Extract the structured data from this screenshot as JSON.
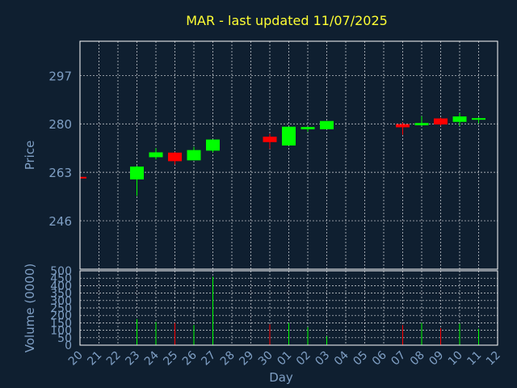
{
  "title": "MAR - last updated 11/07/2025",
  "ylabel_price": "Price",
  "ylabel_volume": "Volume (0000)",
  "xlabel": "Day",
  "colors": {
    "background": "#0f1f30",
    "up": "#00ff00",
    "down": "#ff0000",
    "title": "#ffff33",
    "axis_text": "#7f9fc4",
    "grid": "#ffffff"
  },
  "chart_data": [
    {
      "type": "candlestick",
      "ylim": [
        229,
        309
      ],
      "yticks": [
        246,
        263,
        280,
        297
      ],
      "grid": true,
      "x_ticks": [
        "20",
        "21",
        "22",
        "23",
        "24",
        "25",
        "26",
        "27",
        "28",
        "29",
        "30",
        "01",
        "02",
        "03",
        "04",
        "05",
        "06",
        "07",
        "08",
        "09",
        "10",
        "11",
        "12"
      ],
      "candles": [
        {
          "day": "20",
          "open": 261.4,
          "close": 260.9,
          "high": 261.4,
          "low": 260.9
        },
        {
          "day": "23",
          "open": 260.5,
          "close": 265.0,
          "high": 265.3,
          "low": 254.7
        },
        {
          "day": "24",
          "open": 268.3,
          "close": 270.0,
          "high": 271.5,
          "low": 267.5
        },
        {
          "day": "25",
          "open": 269.9,
          "close": 266.9,
          "high": 270.1,
          "low": 265.7
        },
        {
          "day": "26",
          "open": 267.2,
          "close": 270.8,
          "high": 271.9,
          "low": 267.2
        },
        {
          "day": "27",
          "open": 270.6,
          "close": 274.5,
          "high": 274.5,
          "low": 270.0
        },
        {
          "day": "30",
          "open": 275.5,
          "close": 273.6,
          "high": 276.5,
          "low": 271.2
        },
        {
          "day": "01",
          "open": 272.4,
          "close": 279.0,
          "high": 279.0,
          "low": 272.4
        },
        {
          "day": "02",
          "open": 278.1,
          "close": 278.9,
          "high": 279.0,
          "low": 277.3
        },
        {
          "day": "03",
          "open": 278.1,
          "close": 281.0,
          "high": 281.0,
          "low": 278.1
        },
        {
          "day": "07",
          "open": 279.9,
          "close": 278.8,
          "high": 280.5,
          "low": 276.2
        },
        {
          "day": "08",
          "open": 279.5,
          "close": 280.3,
          "high": 282.7,
          "low": 279.3
        },
        {
          "day": "09",
          "open": 281.9,
          "close": 279.8,
          "high": 282.2,
          "low": 279.4
        },
        {
          "day": "10",
          "open": 280.7,
          "close": 282.6,
          "high": 283.8,
          "low": 279.3
        },
        {
          "day": "11",
          "open": 281.7,
          "close": 282.0,
          "high": 282.3,
          "low": 280.2
        }
      ]
    },
    {
      "type": "bar",
      "ylim": [
        0,
        500
      ],
      "yticks": [
        0,
        50,
        100,
        150,
        200,
        250,
        300,
        350,
        400,
        450,
        500
      ],
      "ylabel": "Volume (0000)",
      "grid": true,
      "volumes": [
        {
          "day": "23",
          "value": 175,
          "dir": "up"
        },
        {
          "day": "24",
          "value": 155,
          "dir": "up"
        },
        {
          "day": "25",
          "value": 150,
          "dir": "down"
        },
        {
          "day": "26",
          "value": 135,
          "dir": "up"
        },
        {
          "day": "27",
          "value": 460,
          "dir": "up"
        },
        {
          "day": "30",
          "value": 140,
          "dir": "down"
        },
        {
          "day": "01",
          "value": 150,
          "dir": "up"
        },
        {
          "day": "02",
          "value": 120,
          "dir": "up"
        },
        {
          "day": "03",
          "value": 60,
          "dir": "up"
        },
        {
          "day": "07",
          "value": 135,
          "dir": "down"
        },
        {
          "day": "08",
          "value": 150,
          "dir": "up"
        },
        {
          "day": "09",
          "value": 115,
          "dir": "down"
        },
        {
          "day": "10",
          "value": 145,
          "dir": "up"
        },
        {
          "day": "11",
          "value": 110,
          "dir": "up"
        }
      ]
    }
  ]
}
